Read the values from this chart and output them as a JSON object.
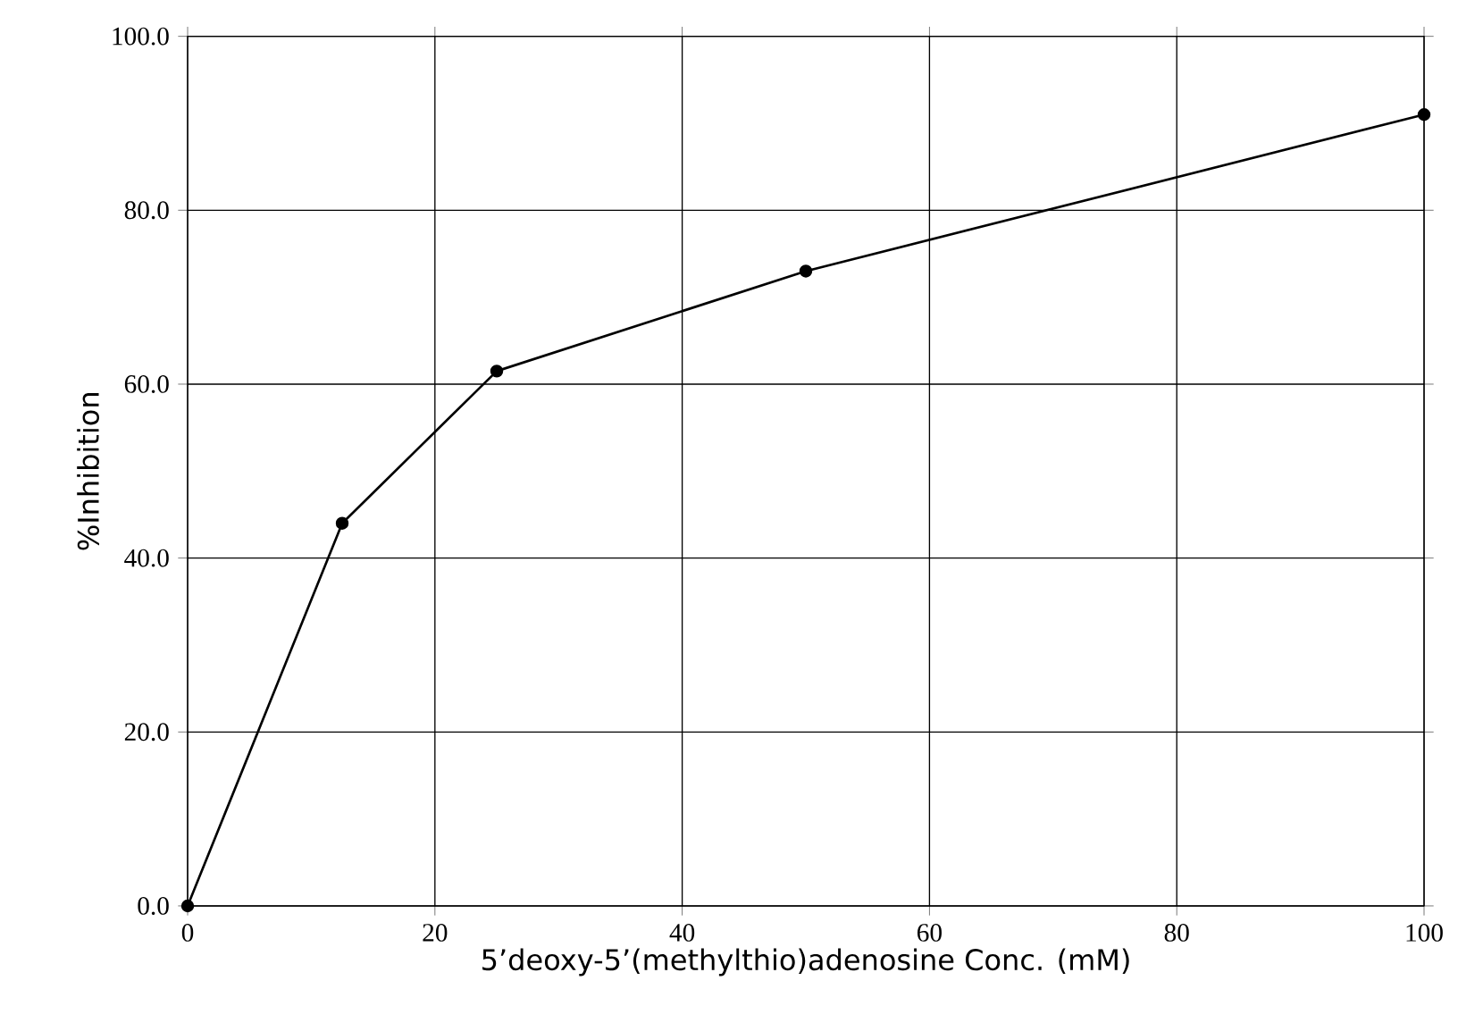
{
  "chart_data": {
    "type": "line",
    "xlabel": "5’deoxy-5’(methylthio)adenosine Conc. (mM)",
    "ylabel": "%Inhibition",
    "x": [
      0,
      12.5,
      25,
      50,
      100
    ],
    "series": [
      {
        "color": "#000000",
        "values": [
          0,
          44,
          61.5,
          73,
          91
        ]
      }
    ],
    "xlim": [
      0,
      100
    ],
    "ylim": [
      0,
      100
    ],
    "xticks": [
      0,
      20,
      40,
      60,
      80,
      100
    ],
    "yticks": [
      {
        "value": 0,
        "label": "0.0"
      },
      {
        "value": 20,
        "label": "20.0"
      },
      {
        "value": 40,
        "label": "40.0"
      },
      {
        "value": 60,
        "label": "60.0"
      },
      {
        "value": 80,
        "label": "80.0"
      },
      {
        "value": 100,
        "label": "100.0"
      }
    ],
    "grid": true,
    "marker": "circle",
    "line_style": "solid"
  }
}
